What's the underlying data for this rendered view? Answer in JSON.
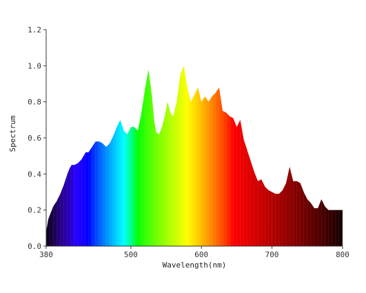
{
  "chart_data": {
    "type": "area",
    "title": "",
    "xlabel": "Wavelength(nm)",
    "ylabel": "Spectrum",
    "xlim": [
      380,
      800
    ],
    "ylim": [
      0,
      1.2
    ],
    "x_ticks": [
      380,
      500,
      600,
      700,
      800
    ],
    "y_ticks": [
      "0.0",
      "0.2",
      "0.4",
      "0.6",
      "0.8",
      "1.0",
      "1.2"
    ],
    "grid": false,
    "legend": "none",
    "fill": "visible-spectrum gradient by wavelength",
    "series": [
      {
        "x": [
          380,
          383,
          386,
          390,
          395,
          400,
          405,
          410,
          413,
          416,
          420,
          425,
          430,
          433,
          436,
          440,
          445,
          450,
          455,
          460,
          465,
          470,
          475,
          480,
          485,
          490,
          495,
          500,
          505,
          510,
          515,
          520,
          525,
          530,
          533,
          536,
          540,
          544,
          548,
          552,
          556,
          560,
          565,
          570,
          575,
          580,
          585,
          590,
          595,
          600,
          605,
          610,
          615,
          620,
          625,
          630,
          635,
          640,
          645,
          650,
          655,
          660,
          665,
          670,
          675,
          680,
          685,
          690,
          695,
          700,
          705,
          710,
          715,
          720,
          725,
          730,
          735,
          740,
          745,
          750,
          755,
          760,
          765,
          770,
          775,
          780,
          785,
          790,
          795,
          800
        ],
        "y": [
          0.08,
          0.15,
          0.18,
          0.22,
          0.25,
          0.29,
          0.34,
          0.4,
          0.43,
          0.45,
          0.45,
          0.46,
          0.48,
          0.5,
          0.52,
          0.52,
          0.55,
          0.58,
          0.58,
          0.57,
          0.55,
          0.57,
          0.61,
          0.66,
          0.7,
          0.64,
          0.62,
          0.66,
          0.66,
          0.64,
          0.74,
          0.87,
          0.98,
          0.83,
          0.7,
          0.63,
          0.62,
          0.66,
          0.72,
          0.8,
          0.74,
          0.72,
          0.8,
          0.95,
          1.0,
          0.88,
          0.8,
          0.84,
          0.88,
          0.8,
          0.83,
          0.8,
          0.83,
          0.85,
          0.88,
          0.75,
          0.74,
          0.72,
          0.71,
          0.66,
          0.7,
          0.59,
          0.53,
          0.47,
          0.41,
          0.36,
          0.37,
          0.33,
          0.31,
          0.3,
          0.29,
          0.29,
          0.31,
          0.35,
          0.44,
          0.36,
          0.36,
          0.35,
          0.3,
          0.26,
          0.24,
          0.21,
          0.21,
          0.26,
          0.22,
          0.2,
          0.2,
          0.2,
          0.2,
          0.2
        ]
      }
    ]
  }
}
